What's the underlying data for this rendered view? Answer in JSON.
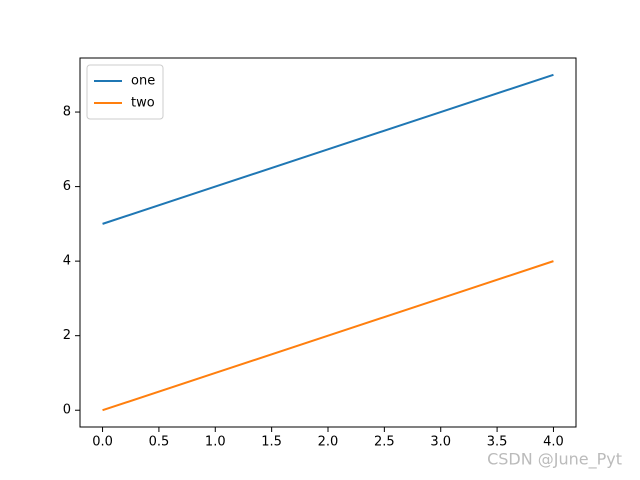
{
  "chart_data": {
    "type": "line",
    "x": [
      0,
      1,
      2,
      3,
      4
    ],
    "series": [
      {
        "name": "one",
        "color": "#1f77b4",
        "values": [
          5,
          6,
          7,
          8,
          9
        ]
      },
      {
        "name": "two",
        "color": "#ff7f0e",
        "values": [
          0,
          1,
          2,
          3,
          4
        ]
      }
    ],
    "xlim": [
      -0.2,
      4.2
    ],
    "ylim": [
      -0.45,
      9.45
    ],
    "xticks": [
      {
        "value": 0,
        "label": "0.0"
      },
      0.5,
      {
        "value": 1,
        "label": "1.0"
      },
      1.5,
      {
        "value": 2,
        "label": "2.0"
      },
      2.5,
      {
        "value": 3,
        "label": "3.0"
      },
      3.5,
      {
        "value": 4,
        "label": "4.0"
      }
    ],
    "yticks": [
      0,
      2,
      4,
      6,
      8
    ],
    "grid": false,
    "legend": "upper-left",
    "watermark": "CSDN @June_Pyt"
  }
}
